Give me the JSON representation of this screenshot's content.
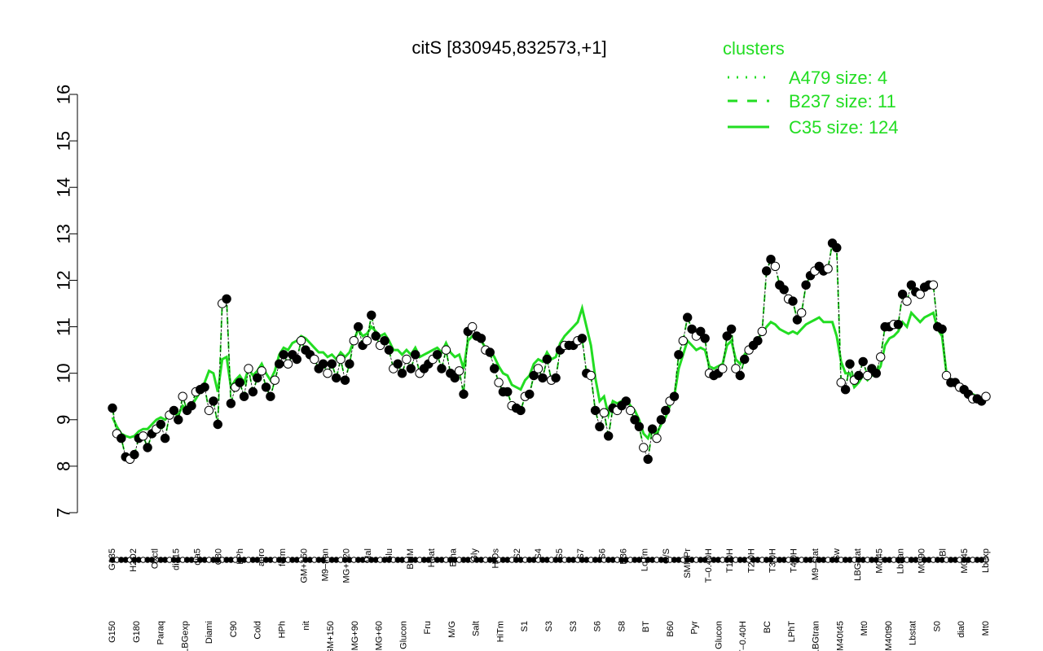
{
  "chart_data": {
    "type": "line",
    "title": "citS [830945,832573,+1]",
    "xlabel": "",
    "ylabel": "",
    "ylim": [
      7,
      16
    ],
    "yticks": [
      7,
      8,
      9,
      10,
      11,
      12,
      13,
      14,
      15,
      16
    ],
    "grid": false,
    "legend": {
      "title": "clusters",
      "placement": "top-right",
      "entries": [
        {
          "label": "A479 size: 4",
          "style": "dotted"
        },
        {
          "label": "B237 size: 11",
          "style": "dashed"
        },
        {
          "label": "C35 size: 124",
          "style": "solid"
        }
      ]
    },
    "colors": {
      "cluster": "#22dd22",
      "points": "#000000"
    },
    "x_labels_upper": [
      "G135",
      "H2O2",
      "Oxctl",
      "dia15",
      "dia5",
      "C30",
      "LPh",
      "aero",
      "ferm",
      "GM+150",
      "M9–tran",
      "MG+120",
      "Mal",
      "Glu",
      "BMM",
      "Heat",
      "Etha",
      "Gly",
      "HiOs",
      "S2",
      "S4",
      "S5",
      "S7",
      "S6",
      "B36",
      "LoTm",
      "G/S",
      "SMMPr",
      "T–0.40H",
      "T1.0H",
      "T2.0H",
      "T3.0H",
      "T4.0H",
      "M9–stat",
      "Sw",
      "LBGstat",
      "M0t45",
      "Lbtran",
      "M0t90",
      "Bl",
      "M0t45",
      "Lbexp"
    ],
    "x_labels_lower": [
      "G150",
      "G180",
      "Paraq",
      "LBGexp",
      "Diami",
      "C90",
      "Cold",
      "HPh",
      "nit",
      "GM+150",
      "MG+90",
      "MG+60",
      "Glucon",
      "Fru",
      "M/G",
      "Salt",
      "HiTm",
      "S1",
      "S3",
      "S3",
      "S6",
      "S8",
      "BT",
      "B60",
      "Pyr",
      "Glucon",
      "T–0.40H",
      "BC",
      "LPhT",
      "LBGtran",
      "M40t45",
      "Mt0",
      "M40t90",
      "Lbstat",
      "S0",
      "dia0",
      "Mt0"
    ],
    "series": [
      {
        "role": "points",
        "values": [
          9.25,
          8.7,
          8.6,
          8.2,
          8.15,
          8.25,
          8.6,
          8.65,
          8.4,
          8.7,
          8.8,
          8.9,
          8.6,
          9.1,
          9.2,
          9.0,
          9.5,
          9.2,
          9.3,
          9.6,
          9.65,
          9.7,
          9.2,
          9.4,
          8.9,
          11.5,
          11.6,
          9.35,
          9.7,
          9.8,
          9.5,
          10.1,
          9.6,
          9.9,
          10.05,
          9.7,
          9.5,
          9.85,
          10.2,
          10.4,
          10.2,
          10.4,
          10.3,
          10.7,
          10.5,
          10.4,
          10.3,
          10.1,
          10.2,
          10.0,
          10.2,
          9.9,
          10.3,
          9.85,
          10.2,
          10.7,
          11.0,
          10.6,
          10.7,
          11.25,
          10.8,
          10.6,
          10.7,
          10.5,
          10.1,
          10.2,
          10.0,
          10.3,
          10.1,
          10.4,
          10.0,
          10.1,
          10.2,
          10.3,
          10.4,
          10.1,
          10.5,
          10.0,
          9.9,
          10.05,
          9.55,
          10.9,
          11.0,
          10.8,
          10.75,
          10.5,
          10.45,
          10.1,
          9.8,
          9.6,
          9.6,
          9.3,
          9.25,
          9.2,
          9.5,
          9.55,
          9.95,
          10.1,
          9.9,
          10.3,
          9.85,
          9.9,
          10.5,
          10.6,
          10.6,
          10.6,
          10.7,
          10.75,
          10.0,
          9.95,
          9.2,
          8.85,
          9.15,
          8.65,
          9.25,
          9.2,
          9.3,
          9.4,
          9.2,
          9.0,
          8.85,
          8.4,
          8.15,
          8.8,
          8.6,
          9.0,
          9.2,
          9.4,
          9.5,
          10.4,
          10.7,
          11.2,
          10.95,
          10.8,
          10.9,
          10.75,
          10.0,
          9.95,
          10.0,
          10.1,
          10.8,
          10.95,
          10.1,
          9.95,
          10.3,
          10.5,
          10.6,
          10.7,
          10.9,
          12.2,
          12.45,
          12.3,
          11.9,
          11.8,
          11.6,
          11.55,
          11.15,
          11.3,
          11.9,
          12.1,
          12.2,
          12.3,
          12.2,
          12.25,
          12.8,
          12.7,
          9.8,
          9.65,
          10.2,
          9.85,
          9.95,
          10.25,
          9.95,
          10.1,
          10.0,
          10.35,
          11.0,
          11.0,
          11.05,
          11.05,
          11.7,
          11.55,
          11.9,
          11.75,
          11.7,
          11.85,
          11.9,
          11.9,
          11.0,
          10.95,
          9.95,
          9.8,
          9.8,
          9.7,
          9.65,
          9.55,
          9.45,
          9.45,
          9.4,
          9.5
        ]
      },
      {
        "role": "C35 size: 124 (mean)",
        "values": [
          9.05,
          8.85,
          8.7,
          8.65,
          8.62,
          8.65,
          8.75,
          8.8,
          8.8,
          8.9,
          9.0,
          9.05,
          9.0,
          9.1,
          9.15,
          9.1,
          9.3,
          9.2,
          9.3,
          9.45,
          9.6,
          9.8,
          10.05,
          10.0,
          9.6,
          10.3,
          10.35,
          9.7,
          9.85,
          9.95,
          9.8,
          10.1,
          9.95,
          10.05,
          10.2,
          10.0,
          9.85,
          10.05,
          10.4,
          10.55,
          10.5,
          10.65,
          10.7,
          10.8,
          10.75,
          10.65,
          10.55,
          10.45,
          10.45,
          10.35,
          10.4,
          10.3,
          10.45,
          10.35,
          10.45,
          10.7,
          10.95,
          10.8,
          10.85,
          11.0,
          10.9,
          10.8,
          10.85,
          10.7,
          10.5,
          10.5,
          10.4,
          10.5,
          10.4,
          10.55,
          10.35,
          10.4,
          10.45,
          10.5,
          10.55,
          10.45,
          10.65,
          10.45,
          10.35,
          10.4,
          10.1,
          10.7,
          10.8,
          10.75,
          10.7,
          10.55,
          10.5,
          10.35,
          10.15,
          10.0,
          9.95,
          9.75,
          9.7,
          9.65,
          9.85,
          9.95,
          10.2,
          10.3,
          10.25,
          10.45,
          10.3,
          10.35,
          10.65,
          10.8,
          10.9,
          11.0,
          11.1,
          11.4,
          11.0,
          10.6,
          9.9,
          9.4,
          9.5,
          9.1,
          9.4,
          9.35,
          9.4,
          9.45,
          9.3,
          9.2,
          9.0,
          8.7,
          8.6,
          8.85,
          8.7,
          8.9,
          9.05,
          9.3,
          9.5,
          10.1,
          10.4,
          10.7,
          10.6,
          10.5,
          10.55,
          10.5,
          10.15,
          10.1,
          10.15,
          10.2,
          10.6,
          10.7,
          10.3,
          10.2,
          10.4,
          10.55,
          10.65,
          10.75,
          10.85,
          11.0,
          11.1,
          11.05,
          10.95,
          10.9,
          10.85,
          10.9,
          10.85,
          10.95,
          11.05,
          11.1,
          11.15,
          11.2,
          11.1,
          11.1,
          11.1,
          10.8,
          10.25,
          10.0,
          10.0,
          9.7,
          9.8,
          9.95,
          9.85,
          9.95,
          10.0,
          10.15,
          10.6,
          10.75,
          10.8,
          10.9,
          11.1,
          11.0,
          11.3,
          11.2,
          11.1,
          11.2,
          11.25,
          11.3,
          10.95,
          10.8,
          10.0,
          9.85,
          9.85,
          9.75,
          9.7,
          9.6,
          9.55,
          9.5,
          9.45,
          9.45
        ]
      }
    ]
  }
}
